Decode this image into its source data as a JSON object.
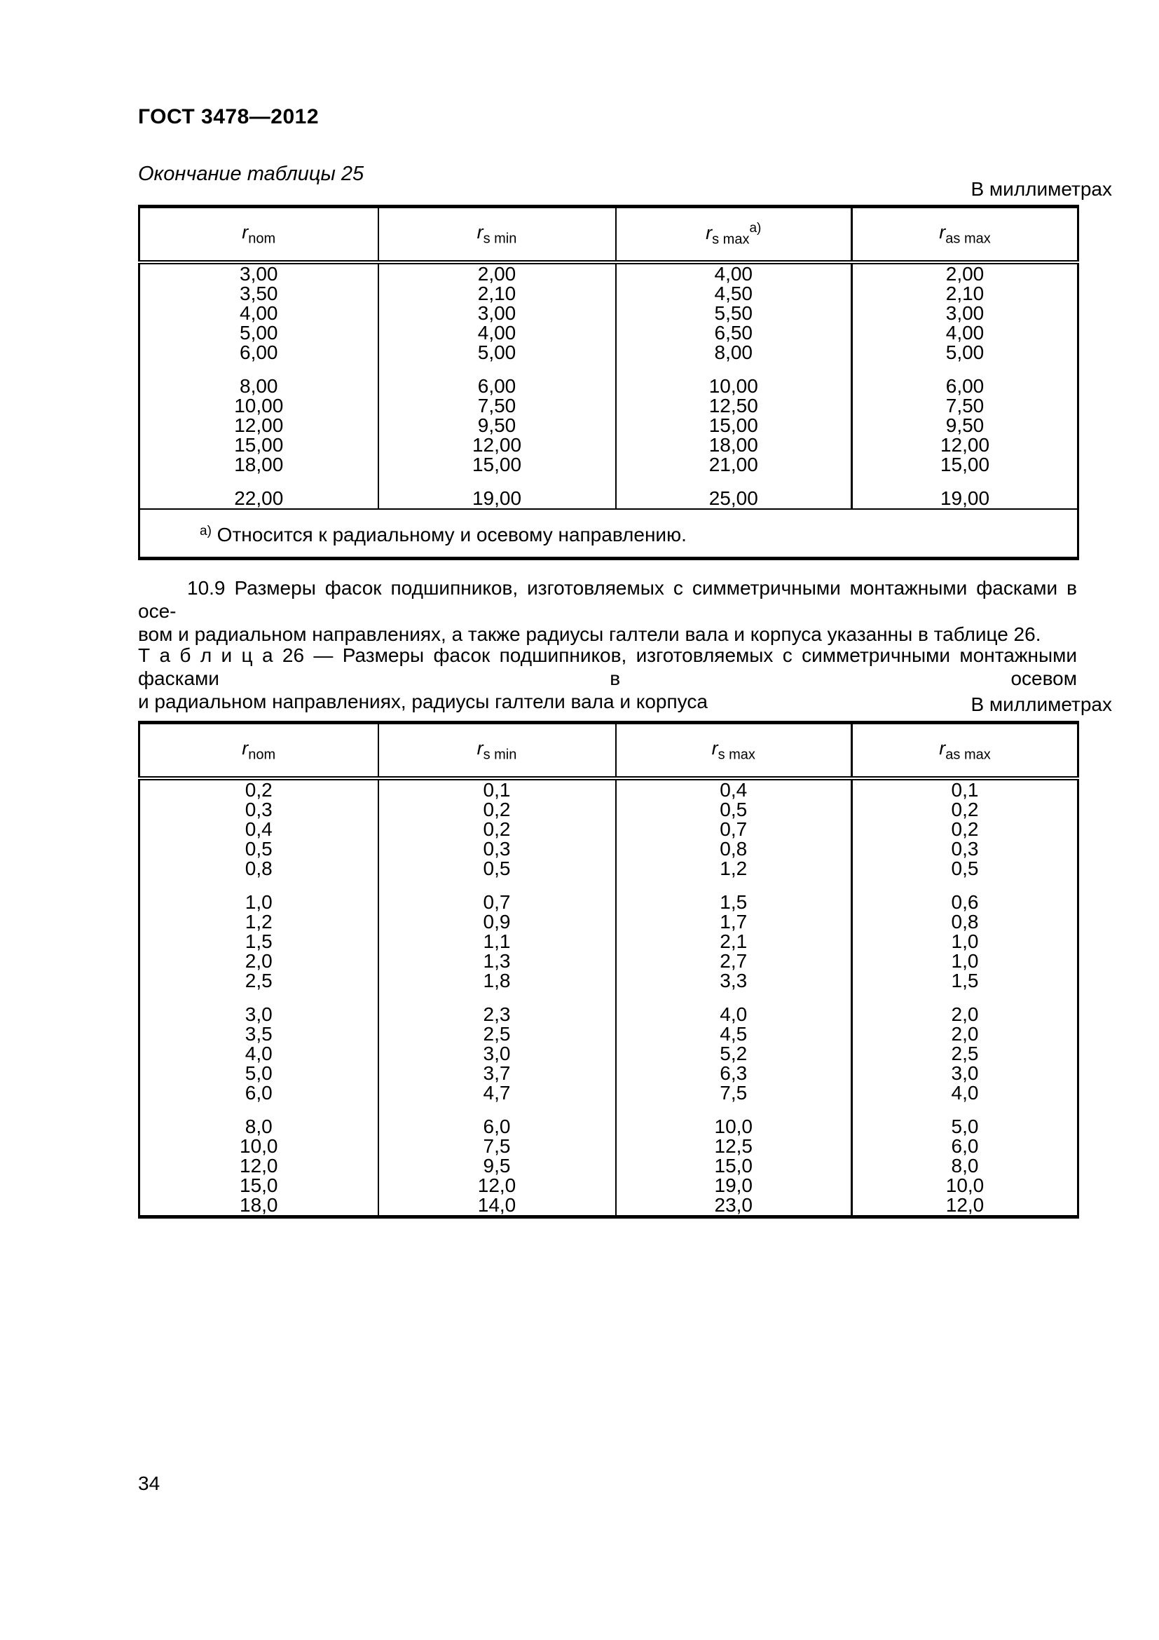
{
  "page": {
    "header_title": "ГОСТ 3478—2012",
    "page_number": "34"
  },
  "table25": {
    "continuation_label": "Окончание таблицы 25",
    "units_label": "В миллиметрах",
    "columns": [
      {
        "key": "r-nom",
        "symbol": "r",
        "sub": "nom",
        "sup": ""
      },
      {
        "key": "r-s-min",
        "symbol": "r",
        "sub": "s min",
        "sup": ""
      },
      {
        "key": "r-s-max",
        "symbol": "r",
        "sub": "s max",
        "sup": "а)"
      },
      {
        "key": "r-as-max",
        "symbol": "r",
        "sub": "as max",
        "sup": ""
      }
    ],
    "row_groups": [
      [
        [
          "3,00",
          "2,00",
          "4,00",
          "2,00"
        ],
        [
          "3,50",
          "2,10",
          "4,50",
          "2,10"
        ],
        [
          "4,00",
          "3,00",
          "5,50",
          "3,00"
        ],
        [
          "5,00",
          "4,00",
          "6,50",
          "4,00"
        ],
        [
          "6,00",
          "5,00",
          "8,00",
          "5,00"
        ]
      ],
      [
        [
          "8,00",
          "6,00",
          "10,00",
          "6,00"
        ],
        [
          "10,00",
          "7,50",
          "12,50",
          "7,50"
        ],
        [
          "12,00",
          "9,50",
          "15,00",
          "9,50"
        ],
        [
          "15,00",
          "12,00",
          "18,00",
          "12,00"
        ],
        [
          "18,00",
          "15,00",
          "21,00",
          "15,00"
        ]
      ],
      [
        [
          "22,00",
          "19,00",
          "25,00",
          "19,00"
        ]
      ]
    ],
    "footnote": {
      "marker": "а)",
      "text": "Относится к радиальному и осевому направлению."
    }
  },
  "section": {
    "paragraph_lines": [
      "10.9  Размеры фасок подшипников, изготовляемых с симметричными монтажными фасками в осе-",
      "вом и радиальном направлениях, а также радиусы галтели вала и корпуса указанны в таблице 26."
    ]
  },
  "table26": {
    "caption_lines": [
      "Т а б л и ц а  26 — Размеры фасок подшипников, изготовляемых с симметричными монтажными фасками в осевом",
      "и радиальном направлениях, радиусы галтели вала и корпуса"
    ],
    "units_label": "В миллиметрах",
    "columns": [
      {
        "key": "r-nom",
        "symbol": "r",
        "sub": "nom",
        "sup": ""
      },
      {
        "key": "r-s-min",
        "symbol": "r",
        "sub": "s min",
        "sup": ""
      },
      {
        "key": "r-s-max",
        "symbol": "r",
        "sub": "s max",
        "sup": ""
      },
      {
        "key": "r-as-max",
        "symbol": "r",
        "sub": "as max",
        "sup": ""
      }
    ],
    "row_groups": [
      [
        [
          "0,2",
          "0,1",
          "0,4",
          "0,1"
        ],
        [
          "0,3",
          "0,2",
          "0,5",
          "0,2"
        ],
        [
          "0,4",
          "0,2",
          "0,7",
          "0,2"
        ],
        [
          "0,5",
          "0,3",
          "0,8",
          "0,3"
        ],
        [
          "0,8",
          "0,5",
          "1,2",
          "0,5"
        ]
      ],
      [
        [
          "1,0",
          "0,7",
          "1,5",
          "0,6"
        ],
        [
          "1,2",
          "0,9",
          "1,7",
          "0,8"
        ],
        [
          "1,5",
          "1,1",
          "2,1",
          "1,0"
        ],
        [
          "2,0",
          "1,3",
          "2,7",
          "1,0"
        ],
        [
          "2,5",
          "1,8",
          "3,3",
          "1,5"
        ]
      ],
      [
        [
          "3,0",
          "2,3",
          "4,0",
          "2,0"
        ],
        [
          "3,5",
          "2,5",
          "4,5",
          "2,0"
        ],
        [
          "4,0",
          "3,0",
          "5,2",
          "2,5"
        ],
        [
          "5,0",
          "3,7",
          "6,3",
          "3,0"
        ],
        [
          "6,0",
          "4,7",
          "7,5",
          "4,0"
        ]
      ],
      [
        [
          "8,0",
          "6,0",
          "10,0",
          "5,0"
        ],
        [
          "10,0",
          "7,5",
          "12,5",
          "6,0"
        ],
        [
          "12,0",
          "9,5",
          "15,0",
          "8,0"
        ],
        [
          "15,0",
          "12,0",
          "19,0",
          "10,0"
        ],
        [
          "18,0",
          "14,0",
          "23,0",
          "12,0"
        ]
      ]
    ]
  }
}
